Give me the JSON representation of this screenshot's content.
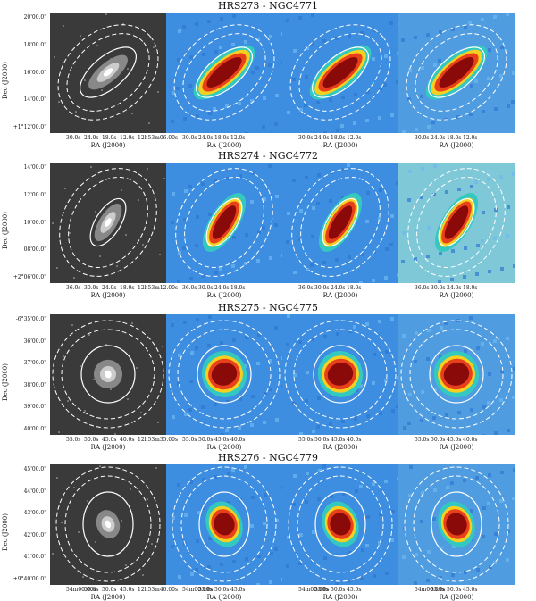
{
  "figure": {
    "ylabel": "Dec (J2000)",
    "xlabel": "RA (J2000)"
  },
  "galaxies": [
    {
      "title": "HRS273 - NGC4771",
      "yticks": [
        "20'00.0\"",
        "18'00.0\"",
        "16'00.0\"",
        "14'00.0\"",
        "+1°12'00.0\""
      ],
      "xticks_first": [
        "30.0s",
        "24.0s",
        "18.0s",
        "12.0s",
        "12h53m06.00s"
      ],
      "xticks_other": [
        "30.0s",
        "24.0s",
        "18.0s",
        "12.0s"
      ],
      "incl_panel4_ticks": false
    },
    {
      "title": "HRS274 - NGC4772",
      "yticks": [
        "14'00.0\"",
        "12'00.0\"",
        "10'00.0\"",
        "08'00.0\"",
        "+2°06'00.0\""
      ],
      "xticks_first": [
        "36.0s",
        "30.0s",
        "24.0s",
        "18.0s",
        "12h53m12.00s"
      ],
      "xticks_other": [
        "36.0s",
        "30.0s",
        "24.0s",
        "18.0s"
      ],
      "incl_panel4_ticks": true
    },
    {
      "title": "HRS275 - NGC4775",
      "yticks": [
        "-6°35'00.0\"",
        "36'00.0\"",
        "37'00.0\"",
        "38'00.0\"",
        "39'00.0\"",
        "40'00.0\""
      ],
      "xticks_first": [
        "55.0s",
        "50.0s",
        "45.0s",
        "40.0s",
        "12h53m35.00s"
      ],
      "xticks_other": [
        "55.0s",
        "50.0s",
        "45.0s",
        "40.0s"
      ],
      "incl_panel4_ticks": true
    },
    {
      "title": "HRS276 - NGC4779",
      "yticks": [
        "45'00.0\"",
        "44'00.0\"",
        "43'00.0\"",
        "42'00.0\"",
        "41'00.0\"",
        "+9°40'00.0\""
      ],
      "xticks_first": [
        "54m00.00s",
        "55.0s",
        "50.0s",
        "45.0s",
        "12h53m40.00s"
      ],
      "xticks_other": [
        "54m00.00s",
        "55.0s",
        "50.0s",
        "45.0s"
      ],
      "incl_panel4_ticks": true
    }
  ]
}
